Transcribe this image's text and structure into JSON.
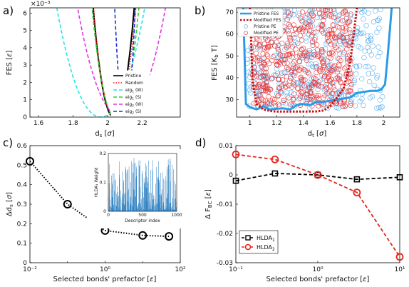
{
  "colors": {
    "black": "#000000",
    "red": "#e8221b",
    "cyan": "#22e6e6",
    "green": "#33cc33",
    "magenta": "#e82ee8",
    "blue": "#1f2fd6",
    "lightblue": "#2b9be6",
    "darkred": "#cc1111"
  },
  "chart_data": [
    {
      "panel": "a)",
      "type": "line",
      "xlabel": "d_s [σ]",
      "ylabel": "FES [ε]",
      "y_multiplier": "×10⁻³",
      "xlim": [
        1.55,
        2.42
      ],
      "ylim": [
        0,
        6.3
      ],
      "xticks": [
        "1.6",
        "1.8",
        "2",
        "2.2"
      ],
      "yticks": [
        "0",
        "1",
        "2",
        "3",
        "4",
        "5",
        "6"
      ],
      "series": [
        {
          "name": "Pristine",
          "center": 2.035,
          "width": 0.14,
          "style": "solid",
          "color": "#000000"
        },
        {
          "name": "Random",
          "center": 2.04,
          "width": 0.145,
          "style": "dotted",
          "color": "#e8221b"
        },
        {
          "name": "eig1 (W)",
          "center": 1.96,
          "width": 0.3,
          "style": "dashed",
          "color": "#22e6e6"
        },
        {
          "name": "eig1 (S)",
          "center": 2.045,
          "width": 0.16,
          "style": "dashed",
          "color": "#33cc33"
        },
        {
          "name": "eig2 (W)",
          "center": 2.08,
          "width": 0.3,
          "style": "dashed",
          "color": "#e82ee8"
        },
        {
          "name": "eig2 (S)",
          "center": 2.1,
          "width": 0.07,
          "style": "dashed",
          "color": "#1f2fd6"
        }
      ],
      "legend": [
        {
          "main": "Pristine",
          "sub": ""
        },
        {
          "main": "Random",
          "sub": ""
        },
        {
          "main": "eig",
          "sub": "1",
          "tail": " (W)"
        },
        {
          "main": "eig",
          "sub": "1",
          "tail": " (S)"
        },
        {
          "main": "eig",
          "sub": "2",
          "tail": " (W)"
        },
        {
          "main": "eig",
          "sub": "2",
          "tail": " (S)"
        }
      ]
    },
    {
      "panel": "b)",
      "type": "line+scatter",
      "xlabel": "d_t [σ]",
      "ylabel": "FES [K_b T]",
      "xlim": [
        0.9,
        2.12
      ],
      "ylim": [
        22,
        72
      ],
      "xticks": [
        "1",
        "1.2",
        "1.4",
        "1.6",
        "1.8",
        "2"
      ],
      "yticks": [
        "30",
        "40",
        "50",
        "60",
        "70"
      ],
      "series": [
        {
          "name": "Pristine FES",
          "style": "solid",
          "color": "#2b9be6",
          "x": [
            0.95,
            0.97,
            1.0,
            1.05,
            1.1,
            1.15,
            1.2,
            1.25,
            1.3,
            1.35,
            1.4,
            1.45,
            1.5,
            1.55,
            1.6,
            1.65,
            1.7,
            1.75,
            1.8,
            1.85,
            1.9,
            1.95,
            1.98,
            2.01,
            2.03,
            2.06
          ],
          "y": [
            72,
            28,
            26.5,
            25.5,
            27,
            25.5,
            25.8,
            26,
            25.5,
            27.5,
            28,
            27.5,
            29,
            29,
            29.5,
            30,
            30.5,
            31,
            33,
            33.5,
            34,
            34,
            34.5,
            37,
            50,
            72
          ]
        },
        {
          "name": "Modified FES",
          "style": "dotted",
          "color": "#cc1111",
          "x": [
            1.0,
            1.02,
            1.05,
            1.1,
            1.15,
            1.2,
            1.3,
            1.4,
            1.5,
            1.55,
            1.6,
            1.65,
            1.7,
            1.75,
            1.78,
            1.8
          ],
          "y": [
            72,
            38,
            28,
            25.5,
            24.8,
            24.5,
            24.5,
            24.5,
            24.6,
            25,
            27,
            31,
            35,
            47,
            62,
            72
          ]
        }
      ],
      "scatter_legend": [
        "Pristine PE",
        "Modified PE"
      ],
      "legend": [
        "Pristine FES",
        "Modified FES",
        "Pristine PE",
        "Modified PE"
      ]
    },
    {
      "panel": "c)",
      "type": "line",
      "xlabel": "Selected bonds' prefactor [ε]",
      "ylabel": "Δd_s [σ]",
      "xscale": "log",
      "xlim": [
        0.01,
        100
      ],
      "ylim": [
        0,
        0.6
      ],
      "xticks": [
        "10⁻²",
        "10⁰",
        "10²"
      ],
      "yticks": [
        "0",
        "0.1",
        "0.2",
        "0.3",
        "0.4",
        "0.5",
        "0.6"
      ],
      "series": [
        {
          "name": "",
          "x": [
            0.01,
            0.1,
            1,
            10,
            50
          ],
          "y": [
            0.52,
            0.3,
            0.165,
            0.14,
            0.135
          ],
          "style": "dotted",
          "marker": "circle",
          "color": "#000000"
        }
      ],
      "inset": {
        "type": "bar",
        "xlabel": "Descriptor index",
        "ylabel": "HLDA₁ Weight",
        "xlim": [
          0,
          1000
        ],
        "ylim": [
          0,
          0.2
        ],
        "xticks": [
          "0",
          "500",
          "1000"
        ],
        "yticks": [
          "0",
          "0.1",
          "0.2"
        ],
        "color": "#2b7fc0"
      }
    },
    {
      "panel": "d)",
      "type": "line",
      "xlabel": "Selected bonds' prefactor [ε]",
      "ylabel": "Δ F_BC [ε]",
      "xscale": "log",
      "xlim": [
        0.1,
        10
      ],
      "ylim": [
        -0.03,
        0.01
      ],
      "xticks": [
        "10⁻¹",
        "10⁰",
        "10¹"
      ],
      "yticks": [
        "0.01",
        "0",
        "-0.01",
        "-0.02",
        "-0.03"
      ],
      "series": [
        {
          "name": "HLDA1",
          "x": [
            0.1,
            0.3,
            1,
            3,
            10
          ],
          "y": [
            -0.002,
            0.0005,
            0.0,
            -0.0015,
            -0.0008
          ],
          "style": "dashed",
          "marker": "square",
          "color": "#000000"
        },
        {
          "name": "HLDA2",
          "x": [
            0.1,
            0.3,
            1,
            3,
            10
          ],
          "y": [
            0.007,
            0.0053,
            0.0,
            -0.006,
            -0.028
          ],
          "style": "dashed",
          "marker": "circle",
          "color": "#e8221b"
        }
      ],
      "legend": [
        {
          "main": "HLDA",
          "sub": "1"
        },
        {
          "main": "HLDA",
          "sub": "2"
        }
      ]
    }
  ]
}
